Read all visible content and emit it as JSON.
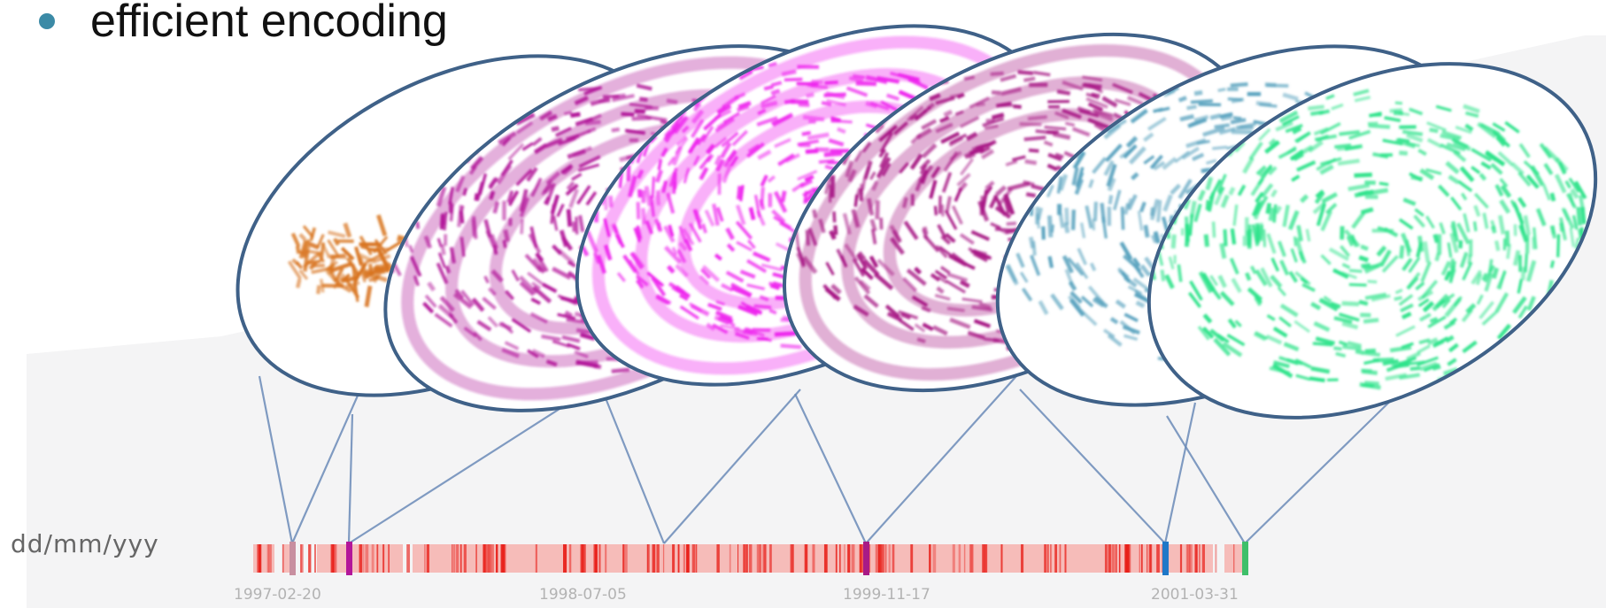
{
  "slide": {
    "bullet_text": "efficient encoding",
    "date_format_label": "dd/mm/yyy"
  },
  "timeline": {
    "tick_labels": [
      "1997-02-20",
      "1998-07-05",
      "1999-11-17",
      "2001-03-31"
    ]
  },
  "views": [
    {
      "name": "view-orange",
      "color": "#d8731c"
    },
    {
      "name": "view-purple",
      "color": "#b3169a"
    },
    {
      "name": "view-magenta",
      "color": "#ee22ee"
    },
    {
      "name": "view-purple-2",
      "color": "#a81a86"
    },
    {
      "name": "view-blue",
      "color": "#5aa3bf"
    },
    {
      "name": "view-green",
      "color": "#2de38a"
    }
  ],
  "colors": {
    "timeline_base": "#f6b1ae",
    "timeline_mark": "#e8201a",
    "ellipse_border": "#3f6188",
    "connector": "#6b8bb8",
    "bullet": "#3b8aa6"
  }
}
